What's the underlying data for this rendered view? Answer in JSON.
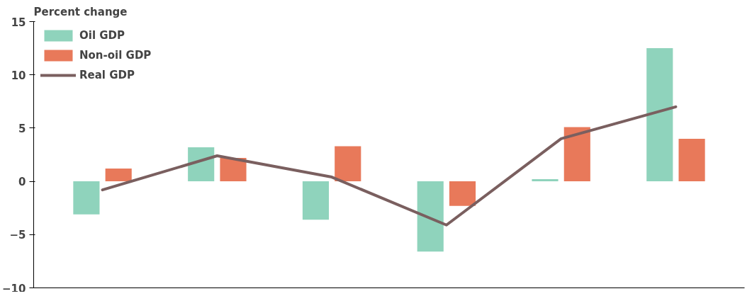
{
  "chart_data": {
    "type": "bar",
    "ylabel": "Percent change",
    "categories": [
      null,
      null,
      null,
      null,
      null,
      null
    ],
    "series": [
      {
        "name": "Oil GDP",
        "color": "#8fd3bc",
        "values": [
          -3.1,
          3.2,
          -3.6,
          -6.6,
          0.2,
          12.5
        ]
      },
      {
        "name": "Non-oil GDP",
        "color": "#e8795a",
        "values": [
          1.2,
          2.2,
          3.3,
          -2.3,
          5.1,
          4.0
        ]
      },
      {
        "name": "Real GDP",
        "type": "line",
        "color": "#7a5f5f",
        "values": [
          -0.8,
          2.4,
          0.4,
          -4.1,
          4.0,
          7.0
        ]
      }
    ],
    "ylim": [
      -10,
      15
    ],
    "yticks": [
      -10,
      -5,
      0,
      5,
      10,
      15
    ],
    "grid": false,
    "legend": "top left"
  }
}
